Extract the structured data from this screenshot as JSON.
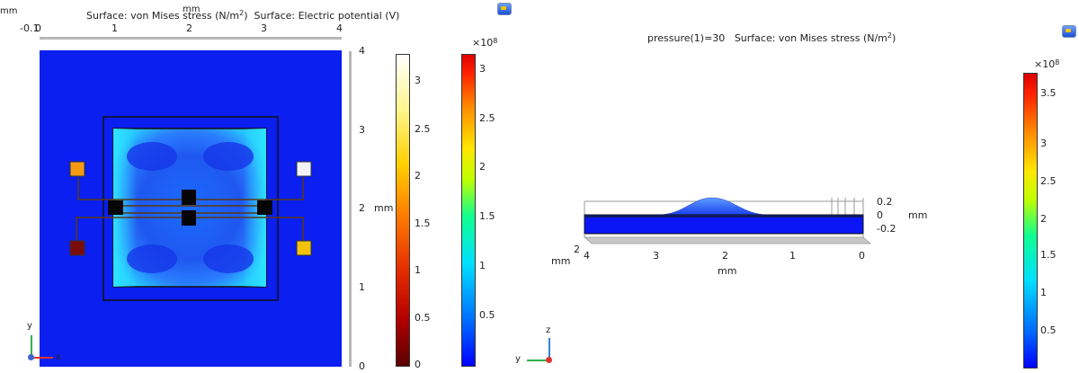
{
  "left_plot": {
    "title_stress": "Surface: von Mises stress (N/m",
    "title_stress_sup": "2",
    "title_stress_end": ")",
    "title_potential": "Surface: Electric potential (V)",
    "x_unit_top": "mm",
    "x_unit_corner": "mm",
    "x_ticks": [
      "-0.1",
      "0",
      "1",
      "2",
      "3",
      "4"
    ],
    "y_unit": "mm",
    "y_ticks": [
      "4",
      "3",
      "2",
      "1",
      "0"
    ],
    "axis_y": "y",
    "axis_x": "x",
    "potential_colorbar": {
      "ticks": [
        "3",
        "2.5",
        "2",
        "1.5",
        "1",
        "0.5",
        "0"
      ],
      "range": [
        0,
        3.3
      ]
    },
    "stress_colorbar": {
      "exponent_base": "×10",
      "exponent": "8",
      "ticks": [
        "3",
        "2.5",
        "2",
        "1.5",
        "1",
        "0.5"
      ],
      "range": [
        0,
        3.2
      ]
    }
  },
  "right_plot": {
    "title_param": "pressure(1)=30",
    "title_stress": "Surface: von Mises stress (N/m",
    "title_stress_sup": "2",
    "title_stress_end": ")",
    "z_ticks": [
      "0.2",
      "0",
      "-0.2"
    ],
    "z_unit": "mm",
    "x_ticks": [
      "4",
      "3",
      "2",
      "1",
      "0"
    ],
    "x_unit": "mm",
    "y_tick": "2",
    "y_unit": "mm",
    "axis_z": "z",
    "axis_y": "y",
    "stress_colorbar": {
      "exponent_base": "×10",
      "exponent": "8",
      "ticks": [
        "3.5",
        "3",
        "2.5",
        "2",
        "1.5",
        "1",
        "0.5"
      ],
      "range": [
        0,
        3.9
      ]
    }
  }
}
